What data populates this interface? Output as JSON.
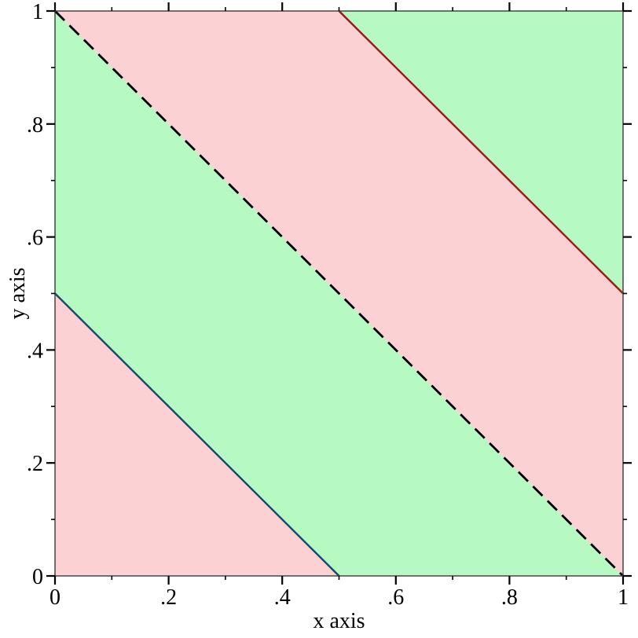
{
  "chart_data": {
    "type": "area",
    "title": "",
    "xlabel": "x axis",
    "ylabel": "y axis",
    "xlim": [
      0,
      1
    ],
    "ylim": [
      0,
      1
    ],
    "grid": false,
    "legend": "none",
    "tick_style": "outward ticks on all four sides, labels on bottom and left only",
    "x_ticks": {
      "major_values": [
        0,
        0.2,
        0.4,
        0.6,
        0.8,
        1
      ],
      "major_labels": [
        "0",
        ".2",
        ".4",
        ".6",
        ".8",
        "1"
      ],
      "minor_values": [
        0.1,
        0.3,
        0.5,
        0.7,
        0.9
      ]
    },
    "y_ticks": {
      "major_values": [
        0,
        0.2,
        0.4,
        0.6,
        0.8,
        1
      ],
      "major_labels": [
        "0",
        ".2",
        ".4",
        ".6",
        ".8",
        "1"
      ],
      "minor_values": [
        0.1,
        0.3,
        0.5,
        0.7,
        0.9
      ]
    },
    "regions": [
      {
        "name": "band x+y between 0 and 0.5",
        "fill": "#fcd1d3",
        "points": [
          [
            0,
            0
          ],
          [
            0.5,
            0
          ],
          [
            0,
            0.5
          ]
        ]
      },
      {
        "name": "band x+y between 0.5 and 1",
        "fill": "#b7f9c3",
        "points": [
          [
            0,
            0.5
          ],
          [
            0,
            1
          ],
          [
            1,
            0
          ],
          [
            0.5,
            0
          ]
        ]
      },
      {
        "name": "band x+y between 1 and 1.5",
        "fill": "#fcd1d3",
        "points": [
          [
            0,
            1
          ],
          [
            0.5,
            1
          ],
          [
            1,
            0.5
          ],
          [
            1,
            0
          ]
        ]
      },
      {
        "name": "band x+y between 1.5 and 2",
        "fill": "#b7f9c3",
        "points": [
          [
            0.5,
            1
          ],
          [
            1,
            1
          ],
          [
            1,
            0.5
          ]
        ]
      }
    ],
    "lines": [
      {
        "name": "contour x+y = 0.5",
        "color": "#15496b",
        "style": "solid",
        "width": 2.4,
        "from": [
          0,
          0.5
        ],
        "to": [
          0.5,
          0
        ]
      },
      {
        "name": "contour x+y = 1",
        "color": "#000000",
        "style": "long-dash",
        "width": 2.8,
        "from": [
          0,
          1
        ],
        "to": [
          1,
          0
        ]
      },
      {
        "name": "contour x+y = 1.5",
        "color": "#9e1a10",
        "style": "solid",
        "width": 2.4,
        "from": [
          0.5,
          1
        ],
        "to": [
          1,
          0.5
        ]
      }
    ]
  },
  "colors": {
    "background": "#ffffff",
    "plot_border": "#3a3a3a",
    "tick": "#000000",
    "label_text": "#000000",
    "green_fill": "#b7f9c3",
    "pink_fill": "#fcd1d3",
    "blue_line": "#15496b",
    "dark_red_line": "#9e1a10",
    "dashed_line": "#000000"
  }
}
